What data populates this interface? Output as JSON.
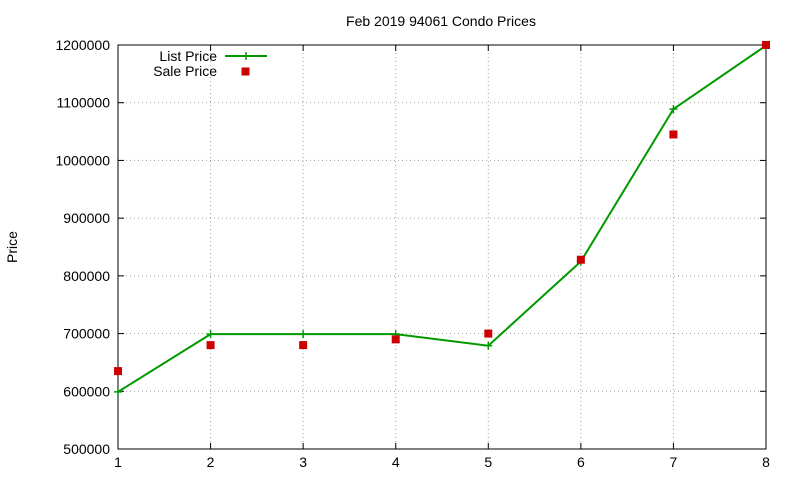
{
  "chart_data": {
    "type": "line",
    "title": "Feb 2019 94061 Condo Prices",
    "xlabel": "",
    "ylabel": "Price",
    "x": [
      1,
      2,
      3,
      4,
      5,
      6,
      7,
      8
    ],
    "xlim": [
      1,
      8
    ],
    "ylim": [
      500000,
      1200000
    ],
    "xticks": [
      "1",
      "2",
      "3",
      "4",
      "5",
      "6",
      "7",
      "8"
    ],
    "yticks": [
      "500000",
      "600000",
      "700000",
      "800000",
      "900000",
      "1000000",
      "1100000",
      "1200000"
    ],
    "grid": true,
    "legend_position": "top-left",
    "series": [
      {
        "name": "List Price",
        "style": "line-with-plus-markers",
        "color": "#009900",
        "values": [
          599000,
          699000,
          699000,
          699000,
          679000,
          825000,
          1089000,
          1199000
        ]
      },
      {
        "name": "Sale Price",
        "style": "square-markers",
        "color": "#cc0000",
        "values": [
          635000,
          680000,
          680000,
          690000,
          700000,
          828000,
          1045000,
          1200000
        ]
      }
    ]
  }
}
